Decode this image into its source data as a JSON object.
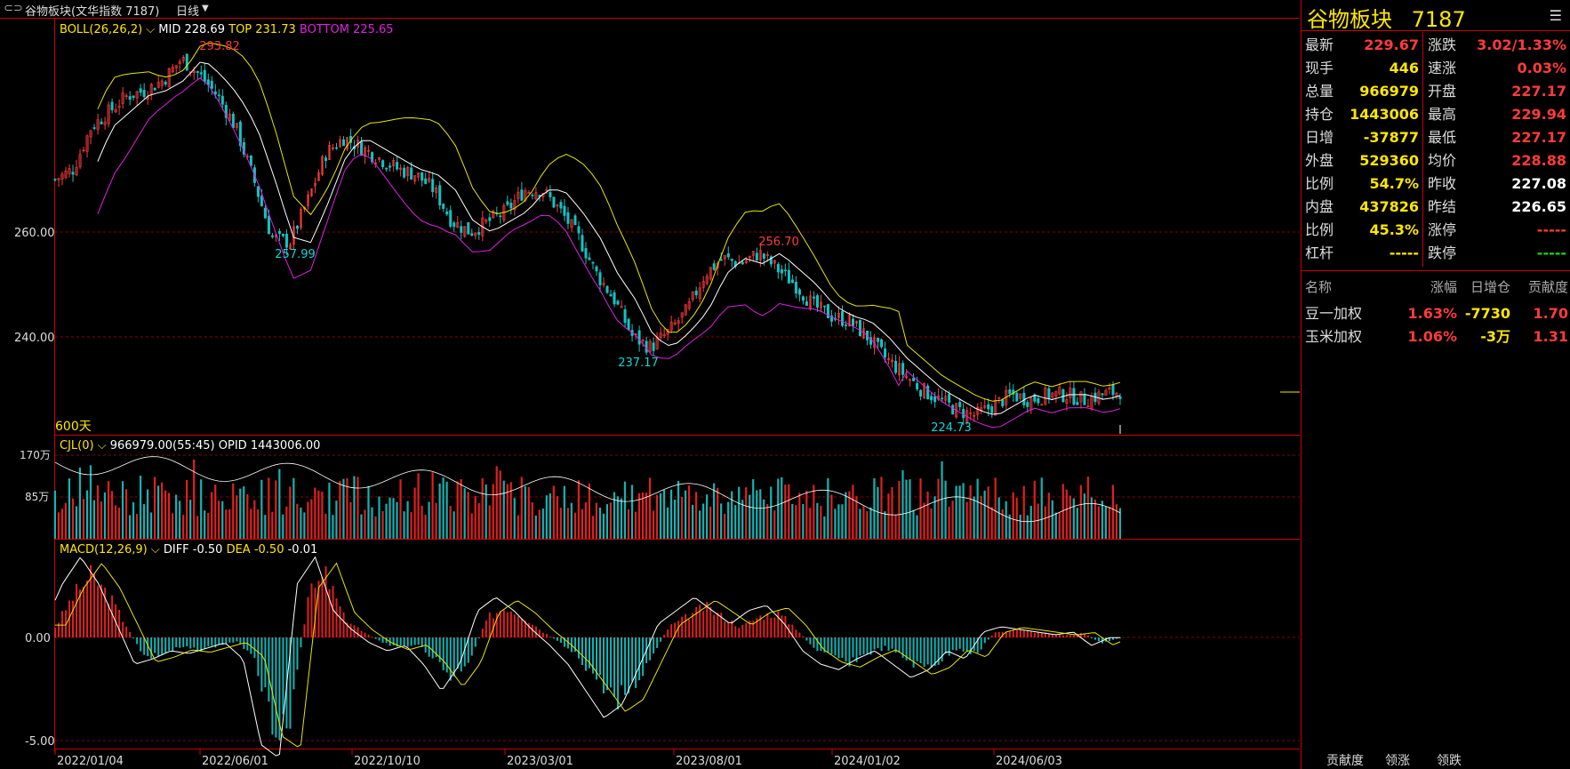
{
  "header": {
    "title": "谷物板块(文华指数  7187)",
    "period": "日线"
  },
  "panel_boll": {
    "name": "BOLL(26,26,2)",
    "mid": "MID 228.69",
    "top": "TOP 231.73",
    "bottom": "BOTTOM 225.65",
    "days": "600天"
  },
  "panel_vol": {
    "name": "CJL(0)",
    "vol": "966979.00(55:45)",
    "opid": "OPID 1443006.00"
  },
  "panel_macd": {
    "name": "MACD(12,26,9)",
    "diff": "DIFF -0.50",
    "dea": "DEA -0.50",
    "macd": "-0.01"
  },
  "chart_data": {
    "type": "candlestick",
    "x_dates": [
      "2022/01/04",
      "2022/06/01",
      "2022/10/10",
      "2023/03/01",
      "2023/08/01",
      "2024/01/02",
      "2024/06/03"
    ],
    "price_axis": [
      "260.00",
      "240.00"
    ],
    "annotations": [
      {
        "label": "293.82",
        "value": 293.82,
        "date": "2022/05"
      },
      {
        "label": "257.99",
        "value": 257.99,
        "date": "2022/09"
      },
      {
        "label": "237.17",
        "value": 237.17,
        "date": "2023/05"
      },
      {
        "label": "256.70",
        "value": 256.7,
        "date": "2023/09"
      },
      {
        "label": "224.73",
        "value": 224.73,
        "date": "2024/02"
      }
    ],
    "close_approx": [
      270,
      272,
      280,
      283,
      286,
      287,
      289,
      293,
      290,
      286,
      280,
      270,
      259,
      258,
      266,
      275,
      278,
      276,
      274,
      272,
      271,
      268,
      262,
      260,
      262,
      264,
      268,
      268,
      264,
      259,
      252,
      247,
      240,
      238,
      241,
      245,
      252,
      255,
      254,
      256,
      253,
      250,
      246,
      244,
      243,
      240,
      236,
      233,
      230,
      228,
      226,
      225,
      227,
      229,
      228,
      229,
      229,
      228,
      229,
      229.67
    ],
    "volume_axis": [
      "170万",
      "85万"
    ],
    "macd_axis": [
      "0.00",
      "-5.00"
    ],
    "macd_hist_approx": [
      0.5,
      2,
      3,
      2,
      0.5,
      -1,
      -0.8,
      -0.5,
      -0.6,
      -0.4,
      -0.2,
      -0.8,
      -4,
      -4.5,
      2,
      3,
      1,
      0.3,
      -0.2,
      -0.5,
      -0.3,
      -1,
      -2,
      -1,
      1,
      1.5,
      1,
      0.3,
      -0.3,
      -1,
      -2,
      -3,
      -2.5,
      -1,
      0.5,
      1,
      1.5,
      1,
      0.5,
      1,
      1.2,
      0.5,
      -0.5,
      -1,
      -1.2,
      -0.8,
      -0.5,
      -1,
      -1.5,
      -1.2,
      -0.5,
      -0.8,
      0.2,
      0.4,
      0.3,
      0.2,
      0.1,
      0.2,
      -0.3,
      -0.01
    ]
  },
  "quote": {
    "title": "谷物板块",
    "code": "7187",
    "rows": [
      {
        "l1": "最新",
        "v1": "229.67",
        "c1": "red",
        "l2": "涨跌",
        "v2": "3.02/1.33%",
        "c2": "red"
      },
      {
        "l1": "现手",
        "v1": "446",
        "c1": "yellow",
        "l2": "速涨",
        "v2": "0.03%",
        "c2": "red"
      },
      {
        "l1": "总量",
        "v1": "966979",
        "c1": "yellow",
        "l2": "开盘",
        "v2": "227.17",
        "c2": "red"
      },
      {
        "l1": "持仓",
        "v1": "1443006",
        "c1": "yellow",
        "l2": "最高",
        "v2": "229.94",
        "c2": "red"
      },
      {
        "l1": "日增",
        "v1": "-37877",
        "c1": "yellow",
        "l2": "最低",
        "v2": "227.17",
        "c2": "red"
      },
      {
        "l1": "外盘",
        "v1": "529360",
        "c1": "yellow",
        "l2": "均价",
        "v2": "228.88",
        "c2": "red"
      },
      {
        "l1": "比例",
        "v1": "54.7%",
        "c1": "yellow",
        "l2": "昨收",
        "v2": "227.08",
        "c2": "white"
      },
      {
        "l1": "内盘",
        "v1": "437826",
        "c1": "yellow",
        "l2": "昨结",
        "v2": "226.65",
        "c2": "white"
      },
      {
        "l1": "比例",
        "v1": "45.3%",
        "c1": "yellow",
        "l2": "涨停",
        "v2": "-----",
        "c2": "red"
      },
      {
        "l1": "杠杆",
        "v1": "-----",
        "c1": "yellow",
        "l2": "跌停",
        "v2": "-----",
        "c2": "green"
      }
    ]
  },
  "members": {
    "headers": [
      "名称",
      "涨幅",
      "日增仓",
      "贡献度"
    ],
    "rows": [
      {
        "name": "豆一加权",
        "pct": "1.63%",
        "inc": "-7730",
        "contrib": "1.70"
      },
      {
        "name": "玉米加权",
        "pct": "1.06%",
        "inc": "-3万",
        "contrib": "1.31"
      }
    ]
  },
  "tabs": [
    "贡献度",
    "领涨",
    "领跌"
  ]
}
